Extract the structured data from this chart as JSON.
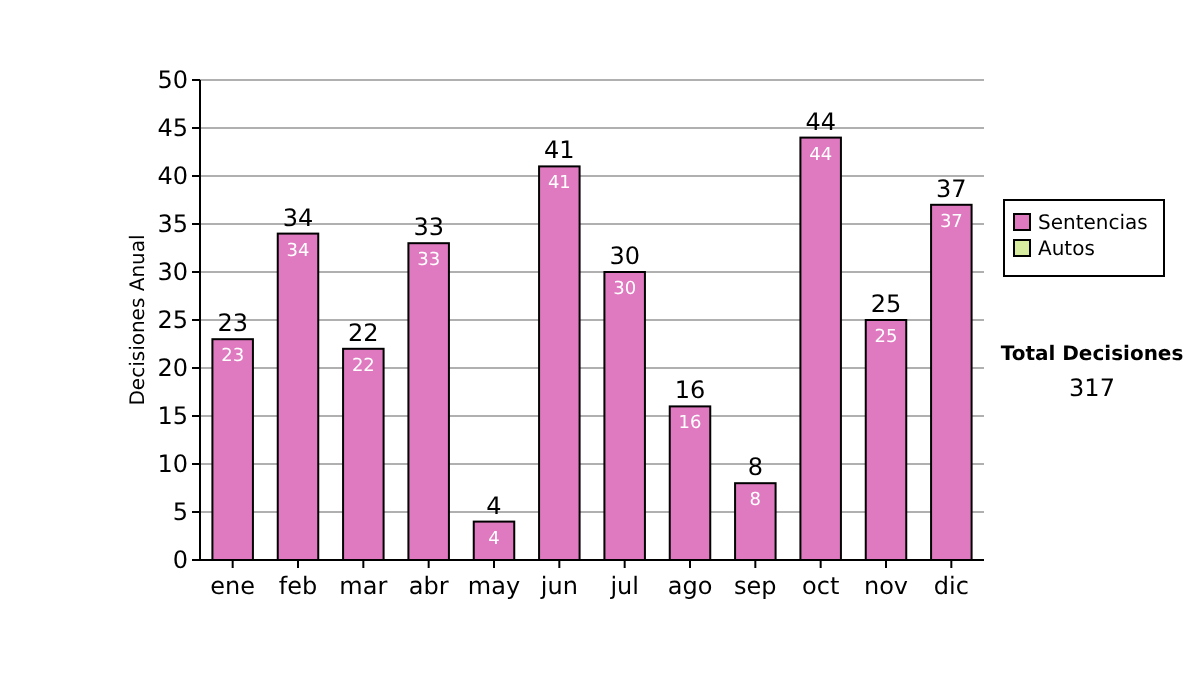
{
  "chart_data": {
    "type": "bar",
    "stacked": true,
    "ylabel": "Decisiones Anual",
    "categories": [
      "ene",
      "feb",
      "mar",
      "abr",
      "may",
      "jun",
      "jul",
      "ago",
      "sep",
      "oct",
      "nov",
      "dic"
    ],
    "series": [
      {
        "name": "Sentencias",
        "color": "#e07ac0",
        "values": [
          23,
          34,
          22,
          33,
          4,
          41,
          30,
          16,
          8,
          44,
          25,
          37
        ]
      },
      {
        "name": "Autos",
        "color": "#d8eca0",
        "values": [
          null,
          null,
          null,
          null,
          null,
          null,
          null,
          null,
          null,
          null,
          null,
          null
        ]
      }
    ],
    "data_labels": true,
    "totals": [
      "23",
      "34",
      "22",
      "33",
      "4",
      "41",
      "30",
      "16",
      "8",
      "44",
      "25",
      "37"
    ],
    "ylim": [
      0,
      50
    ],
    "yticks": [
      0,
      5,
      10,
      15,
      20,
      25,
      30,
      35,
      40,
      45,
      50
    ],
    "grid": "y",
    "legend": "right",
    "annotations": [
      "Total Decisiones",
      "317"
    ]
  }
}
